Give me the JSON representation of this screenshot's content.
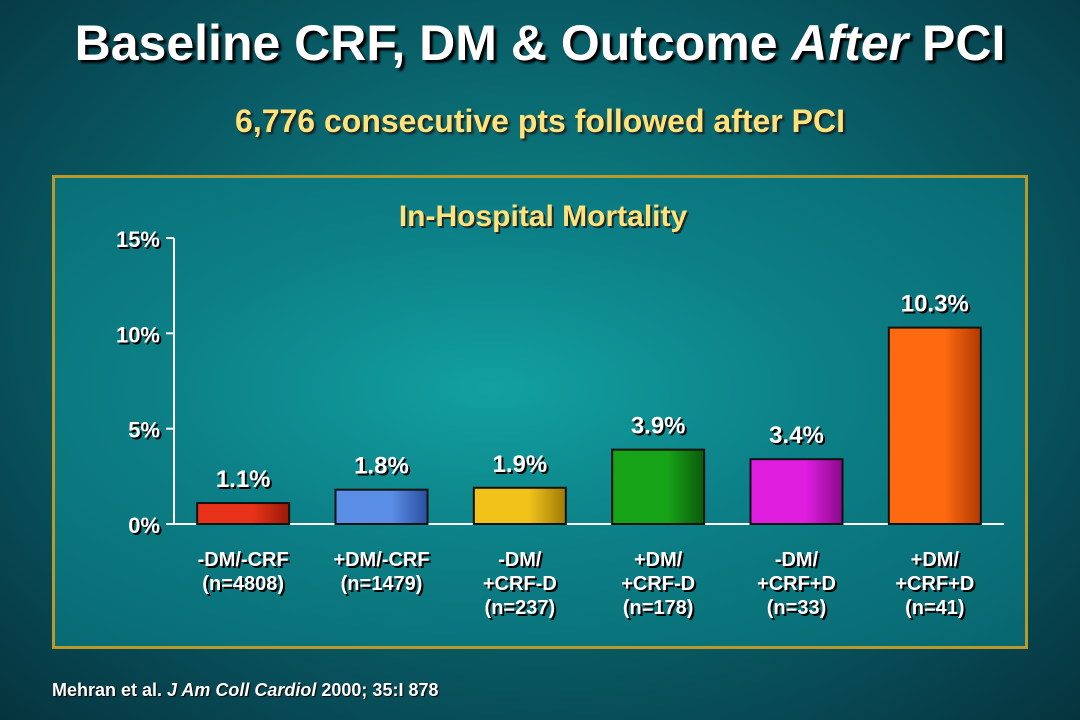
{
  "title": {
    "prefix": "Baseline CRF, DM & Outcome ",
    "emphasis": "After",
    "suffix": " PCI"
  },
  "subtitle": "6,776 consecutive pts followed after PCI",
  "footer": {
    "authors": "Mehran et al. ",
    "journal": "J Am Coll Cardiol",
    "details": " 2000; 35:I 878"
  },
  "chart_data": {
    "type": "bar",
    "title": "In-Hospital Mortality",
    "xlabel": "",
    "ylabel": "",
    "ylim": [
      0,
      15
    ],
    "yticks": [
      0,
      5,
      10,
      15
    ],
    "ytick_labels": [
      "0%",
      "5%",
      "10%",
      "15%"
    ],
    "categories": [
      [
        "-DM/-CRF",
        "(n=4808)"
      ],
      [
        "+DM/-CRF",
        "(n=1479)"
      ],
      [
        "-DM/",
        "+CRF-D",
        "(n=237)"
      ],
      [
        "+DM/",
        "+CRF-D",
        "(n=178)"
      ],
      [
        "-DM/",
        "+CRF+D",
        "(n=33)"
      ],
      [
        "+DM/",
        "+CRF+D",
        "(n=41)"
      ]
    ],
    "values": [
      1.1,
      1.8,
      1.9,
      3.9,
      3.4,
      10.3
    ],
    "value_labels": [
      "1.1%",
      "1.8%",
      "1.9%",
      "3.9%",
      "3.4%",
      "10.3%"
    ],
    "colors": [
      "#e8331a",
      "#5b8fe6",
      "#f0c21a",
      "#17a317",
      "#e01ee0",
      "#ff6a10"
    ],
    "dark_colors": [
      "#9a1a08",
      "#2a4fa0",
      "#a07a05",
      "#0a5a0a",
      "#8a0a8a",
      "#b03a00"
    ],
    "grid": false,
    "legend": "none"
  }
}
